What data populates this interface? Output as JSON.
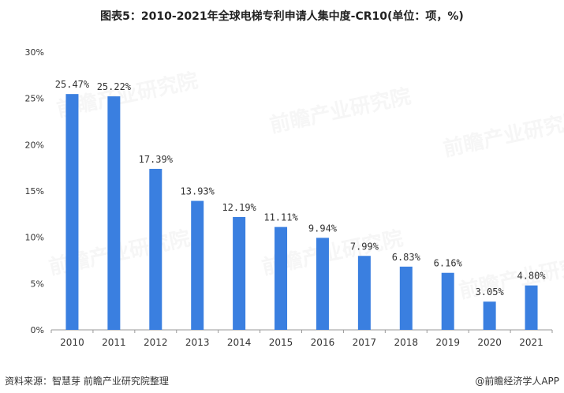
{
  "title": "图表5：2010-2021年全球电梯专利申请人集中度-CR10(单位：项，%)",
  "footer": {
    "source": "资料来源：智慧芽 前瞻产业研究院整理",
    "brand": "@前瞻经济学人APP"
  },
  "watermark_text": "前瞻产业研究院",
  "colors": {
    "bar": "#3a7fe0",
    "axis": "#999999",
    "grid": "#e6e6e6",
    "text": "#333333"
  },
  "chart_data": {
    "type": "bar",
    "title": "图表5：2010-2021年全球电梯专利申请人集中度-CR10(单位：项，%)",
    "categories": [
      "2010",
      "2011",
      "2012",
      "2013",
      "2014",
      "2015",
      "2016",
      "2017",
      "2018",
      "2019",
      "2020",
      "2021"
    ],
    "values": [
      25.47,
      25.22,
      17.39,
      13.93,
      12.19,
      11.11,
      9.94,
      7.99,
      6.83,
      6.16,
      3.05,
      4.8
    ],
    "data_labels": [
      "25.47%",
      "25.22%",
      "17.39%",
      "13.93%",
      "12.19%",
      "11.11%",
      "9.94%",
      "7.99%",
      "6.83%",
      "6.16%",
      "3.05%",
      "4.80%"
    ],
    "yticks": [
      "0%",
      "5%",
      "10%",
      "15%",
      "20%",
      "25%",
      "30%"
    ],
    "ytick_values": [
      0,
      5,
      10,
      15,
      20,
      25,
      30
    ],
    "ylim": [
      0,
      30
    ],
    "xlabel": "",
    "ylabel": "",
    "grid": false,
    "legend": "none"
  }
}
